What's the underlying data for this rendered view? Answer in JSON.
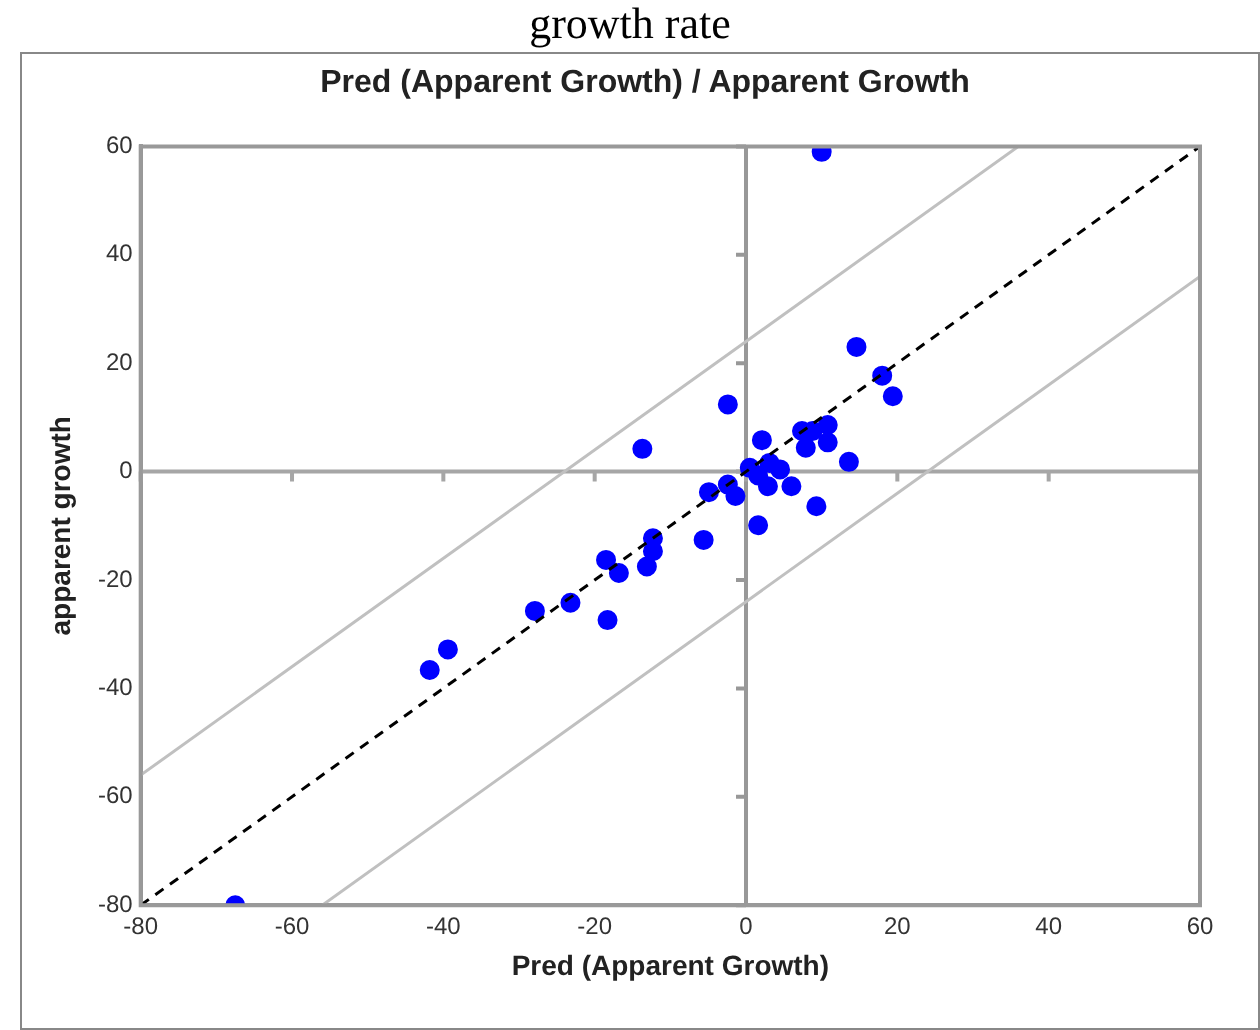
{
  "chart_data": {
    "type": "scatter",
    "title": "Pred (Apparent Growth) / Apparent Growth",
    "xlabel": "Pred (Apparent Growth)",
    "ylabel": "apparent growth",
    "annotations": [
      "growth rate"
    ],
    "xlim": [
      -80,
      60
    ],
    "xticks": [
      -80,
      -60,
      -40,
      -20,
      0,
      20,
      40,
      60
    ],
    "ylim": [
      -80,
      60
    ],
    "yticks": [
      -80,
      -60,
      -40,
      -20,
      0,
      20,
      40,
      60
    ],
    "grid": false,
    "ref_lines": [
      {
        "axis": "x",
        "value": 0,
        "color": "#989898",
        "line_style": "solid"
      },
      {
        "axis": "y",
        "value": 0,
        "color": "#a6a6a6",
        "line_style": "solid"
      }
    ],
    "legend": false,
    "marker": "circle",
    "series": [
      {
        "type": "line",
        "color": "#c0c0c0",
        "line_style": "solid",
        "marker": "none",
        "x": [
          -80,
          36
        ],
        "values": [
          -56,
          60
        ]
      },
      {
        "type": "line",
        "color": "#c0c0c0",
        "line_style": "solid",
        "marker": "none",
        "x": [
          -56,
          60
        ],
        "values": [
          -80,
          36
        ]
      },
      {
        "type": "line",
        "color": "#000000",
        "line_style": "dashed",
        "marker": "none",
        "x": [
          -80,
          60
        ],
        "values": [
          -80,
          60
        ]
      },
      {
        "type": "scatter",
        "color": "#0000ff",
        "x": [
          10,
          14.6,
          18,
          19.4,
          -2.4,
          -13.7,
          2.1,
          7.4,
          8.8,
          10.8,
          7.9,
          10.8,
          13.6,
          0.5,
          1.6,
          3.1,
          4.5,
          2.9,
          6,
          -4.9,
          -2.4,
          -1.4,
          9.3,
          1.6,
          -5.6,
          -12.3,
          -12.3,
          -18.5,
          -16.8,
          -13.1,
          -18.3,
          -23.2,
          -27.9,
          -39.4,
          -41.8,
          -67.5
        ],
        "values": [
          59,
          23,
          17.7,
          13.9,
          12.4,
          4.2,
          5.8,
          7.5,
          7.5,
          8.6,
          4.4,
          5.4,
          1.8,
          0.7,
          -0.7,
          1.6,
          0.4,
          -2.7,
          -2.7,
          -3.8,
          -2.4,
          -4.5,
          -6.4,
          -9.9,
          -12.6,
          -12.3,
          -14.7,
          -16.3,
          -18.7,
          -17.5,
          -27.4,
          -24.2,
          -25.7,
          -32.8,
          -36.6,
          -80
        ]
      }
    ]
  }
}
